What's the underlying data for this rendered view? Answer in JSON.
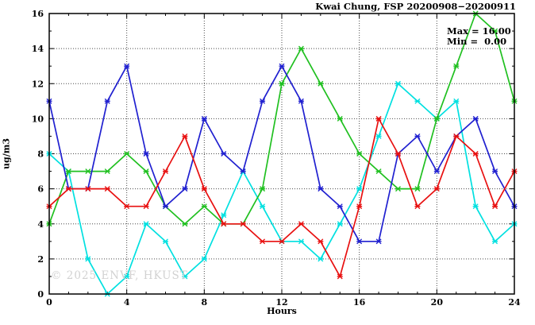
{
  "title": "Kwai Chung, FSP 20200908−20200911",
  "legend": {
    "max_label": "Max = 16.00",
    "min_label": "Min =  0.00"
  },
  "watermark": "© 2025 ENVF, HKUST",
  "chart_data": {
    "type": "line",
    "title": "Kwai Chung, FSP 20200908−20200911",
    "xlabel": "Hours",
    "ylabel": "ug/m3",
    "xlim": [
      0,
      24
    ],
    "ylim": [
      0,
      16
    ],
    "xticks_major": [
      0,
      4,
      8,
      12,
      16,
      20,
      24
    ],
    "yticks_major": [
      0,
      2,
      4,
      6,
      8,
      10,
      12,
      14,
      16
    ],
    "minor_step_x": 1,
    "minor_step_y": 1,
    "grid": true,
    "legend_position": "top-right",
    "stats": {
      "max": 16.0,
      "min": 0.0
    },
    "x": [
      0,
      1,
      2,
      3,
      4,
      5,
      6,
      7,
      8,
      9,
      10,
      11,
      12,
      13,
      14,
      15,
      16,
      17,
      18,
      19,
      20,
      21,
      22,
      23,
      24
    ],
    "series": [
      {
        "name": "series-cyan",
        "color": "#00e0e0",
        "values": [
          8,
          7,
          2,
          0,
          1,
          4,
          3,
          1,
          2,
          4.5,
          7,
          5,
          3,
          3,
          2,
          4,
          6,
          9,
          12,
          11,
          10,
          11,
          5,
          3,
          4
        ]
      },
      {
        "name": "series-green",
        "color": "#20c020",
        "values": [
          4,
          7,
          7,
          7,
          8,
          7,
          5,
          4,
          5,
          4,
          4,
          6,
          12,
          14,
          12,
          10,
          8,
          7,
          6,
          6,
          10,
          13,
          16,
          15,
          11
        ]
      },
      {
        "name": "series-blue",
        "color": "#2020d0",
        "values": [
          11,
          6,
          6,
          11,
          13,
          8,
          5,
          6,
          10,
          8,
          7,
          11,
          13,
          11,
          6,
          5,
          3,
          3,
          8,
          9,
          7,
          9,
          10,
          7,
          5
        ]
      },
      {
        "name": "series-red",
        "color": "#e81010",
        "values": [
          5,
          6,
          6,
          6,
          5,
          5,
          7,
          9,
          6,
          4,
          4,
          3,
          3,
          4,
          3,
          1,
          5,
          10,
          8,
          5,
          6,
          9,
          8,
          5,
          7
        ]
      }
    ]
  }
}
